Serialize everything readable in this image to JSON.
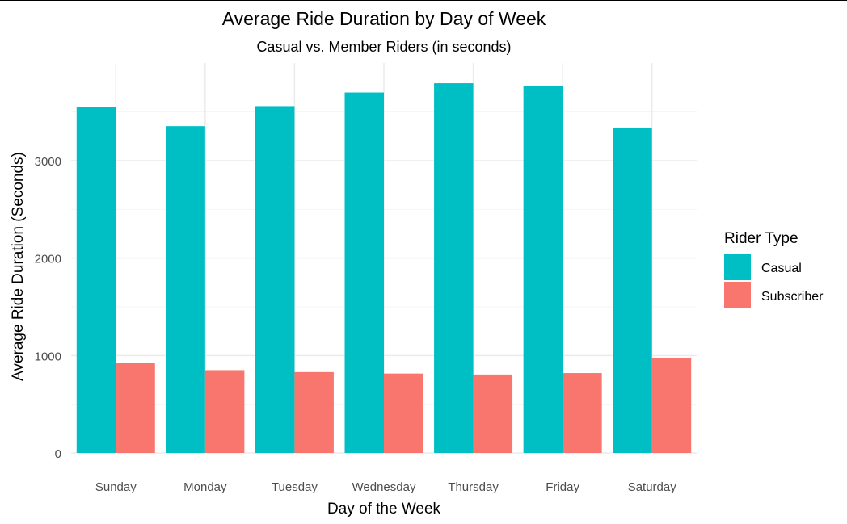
{
  "chart_data": {
    "type": "bar",
    "title": "Average Ride Duration by Day of Week",
    "subtitle": "Casual vs. Member Riders (in seconds)",
    "xlabel": "Day of the Week",
    "ylabel": "Average Ride Duration (Seconds)",
    "categories": [
      "Sunday",
      "Monday",
      "Tuesday",
      "Wednesday",
      "Thursday",
      "Friday",
      "Saturday"
    ],
    "ylim": [
      0,
      3950
    ],
    "yticks": [
      0,
      1000,
      2000,
      3000
    ],
    "grid": true,
    "legend_title": "Rider Type",
    "legend_position": "right",
    "series": [
      {
        "name": "Casual",
        "color": "#00BFC4",
        "values": [
          3550,
          3355,
          3560,
          3700,
          3795,
          3765,
          3340
        ]
      },
      {
        "name": "Subscriber",
        "color": "#F8766D",
        "values": [
          920,
          850,
          830,
          815,
          805,
          820,
          975
        ]
      }
    ]
  }
}
